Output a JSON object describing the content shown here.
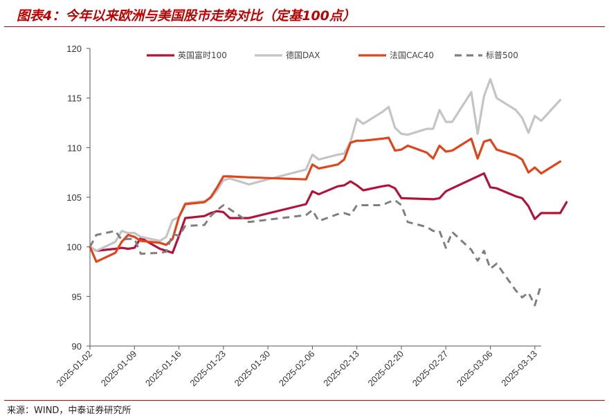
{
  "title": "图表4：今年以来欧洲与美国股市走势对比（定基100点）",
  "source": "来源：WIND，中泰证券研究所",
  "chart_data": {
    "type": "line",
    "ylim": [
      90,
      120
    ],
    "yticks": [
      "90",
      "95",
      "100",
      "105",
      "110",
      "115",
      "120"
    ],
    "xticks": [
      "2025-01-02",
      "2025-01-09",
      "2025-01-16",
      "2025-01-23",
      "2025-01-30",
      "2025-02-06",
      "2025-02-13",
      "2025-02-20",
      "2025-02-27",
      "2025-03-06",
      "2025-03-13"
    ],
    "x_start": "2025-01-02",
    "x_end": "2025-03-14",
    "legend_position": "top",
    "series": [
      {
        "name": "英国富时100",
        "color": "#b5123a",
        "dash": "solid",
        "points": [
          [
            "2025-01-02",
            100
          ],
          [
            "2025-01-03",
            99.6
          ],
          [
            "2025-01-06",
            99.8
          ],
          [
            "2025-01-07",
            99.9
          ],
          [
            "2025-01-08",
            99.8
          ],
          [
            "2025-01-09",
            99.9
          ],
          [
            "2025-01-10",
            100.9
          ],
          [
            "2025-01-13",
            99.8
          ],
          [
            "2025-01-14",
            99.6
          ],
          [
            "2025-01-15",
            99.4
          ],
          [
            "2025-01-16",
            101.1
          ],
          [
            "2025-01-17",
            102.9
          ],
          [
            "2025-01-20",
            103.1
          ],
          [
            "2025-01-21",
            103.4
          ],
          [
            "2025-01-22",
            103.6
          ],
          [
            "2025-01-23",
            103.5
          ],
          [
            "2025-01-24",
            102.9
          ],
          [
            "2025-01-27",
            102.9
          ],
          [
            "2025-02-05",
            104.3
          ],
          [
            "2025-02-06",
            105.6
          ],
          [
            "2025-02-07",
            105.3
          ],
          [
            "2025-02-10",
            106.1
          ],
          [
            "2025-02-11",
            106.2
          ],
          [
            "2025-02-12",
            106.6
          ],
          [
            "2025-02-13",
            106.2
          ],
          [
            "2025-02-14",
            105.7
          ],
          [
            "2025-02-17",
            106.1
          ],
          [
            "2025-02-18",
            106.2
          ],
          [
            "2025-02-19",
            105.9
          ],
          [
            "2025-02-20",
            104.9
          ],
          [
            "2025-02-25",
            104.8
          ],
          [
            "2025-02-26",
            104.9
          ],
          [
            "2025-02-27",
            105.6
          ],
          [
            "2025-02-28",
            105.9
          ],
          [
            "2025-03-03",
            106.8
          ],
          [
            "2025-03-04",
            107.1
          ],
          [
            "2025-03-05",
            107.4
          ],
          [
            "2025-03-06",
            106.0
          ],
          [
            "2025-03-07",
            105.9
          ],
          [
            "2025-03-10",
            105.1
          ],
          [
            "2025-03-11",
            104.9
          ],
          [
            "2025-03-12",
            104.1
          ],
          [
            "2025-03-13",
            102.8
          ],
          [
            "2025-03-14",
            103.4
          ],
          [
            "2025-03-17",
            103.4
          ],
          [
            "2025-03-18",
            104.5
          ]
        ]
      },
      {
        "name": "德国DAX",
        "color": "#c4c4c4",
        "dash": "solid",
        "points": [
          [
            "2025-01-02",
            100
          ],
          [
            "2025-01-03",
            99.6
          ],
          [
            "2025-01-06",
            100.5
          ],
          [
            "2025-01-07",
            101.6
          ],
          [
            "2025-01-08",
            101.4
          ],
          [
            "2025-01-09",
            101.4
          ],
          [
            "2025-01-10",
            101.0
          ],
          [
            "2025-01-13",
            100.6
          ],
          [
            "2025-01-14",
            101.0
          ],
          [
            "2025-01-15",
            102.7
          ],
          [
            "2025-01-16",
            103.0
          ],
          [
            "2025-01-17",
            104.4
          ],
          [
            "2025-01-20",
            104.6
          ],
          [
            "2025-01-21",
            104.9
          ],
          [
            "2025-01-22",
            105.7
          ],
          [
            "2025-01-23",
            106.7
          ],
          [
            "2025-01-24",
            106.9
          ],
          [
            "2025-01-27",
            106.3
          ],
          [
            "2025-02-05",
            107.8
          ],
          [
            "2025-02-06",
            109.3
          ],
          [
            "2025-02-07",
            108.8
          ],
          [
            "2025-02-10",
            109.3
          ],
          [
            "2025-02-11",
            109.4
          ],
          [
            "2025-02-12",
            110.6
          ],
          [
            "2025-02-13",
            112.9
          ],
          [
            "2025-02-14",
            112.4
          ],
          [
            "2025-02-17",
            113.6
          ],
          [
            "2025-02-18",
            114.1
          ],
          [
            "2025-02-19",
            112.0
          ],
          [
            "2025-02-20",
            111.4
          ],
          [
            "2025-02-21",
            111.3
          ],
          [
            "2025-02-24",
            111.9
          ],
          [
            "2025-02-25",
            111.9
          ],
          [
            "2025-02-26",
            113.8
          ],
          [
            "2025-02-27",
            112.6
          ],
          [
            "2025-02-28",
            112.6
          ],
          [
            "2025-03-03",
            115.6
          ],
          [
            "2025-03-04",
            111.4
          ],
          [
            "2025-03-05",
            115.2
          ],
          [
            "2025-03-06",
            116.9
          ],
          [
            "2025-03-07",
            115.0
          ],
          [
            "2025-03-10",
            113.8
          ],
          [
            "2025-03-11",
            113.0
          ],
          [
            "2025-03-12",
            111.5
          ],
          [
            "2025-03-13",
            113.2
          ],
          [
            "2025-03-14",
            112.7
          ],
          [
            "2025-03-17",
            114.8
          ]
        ]
      },
      {
        "name": "法国CAC40",
        "color": "#e0441b",
        "dash": "solid",
        "points": [
          [
            "2025-01-02",
            100
          ],
          [
            "2025-01-03",
            98.5
          ],
          [
            "2025-01-06",
            99.4
          ],
          [
            "2025-01-07",
            100.5
          ],
          [
            "2025-01-08",
            101.2
          ],
          [
            "2025-01-09",
            101.0
          ],
          [
            "2025-01-10",
            100.6
          ],
          [
            "2025-01-13",
            100.4
          ],
          [
            "2025-01-14",
            100.2
          ],
          [
            "2025-01-15",
            100.8
          ],
          [
            "2025-01-16",
            103.0
          ],
          [
            "2025-01-17",
            104.3
          ],
          [
            "2025-01-20",
            104.5
          ],
          [
            "2025-01-21",
            105.0
          ],
          [
            "2025-01-22",
            106.0
          ],
          [
            "2025-01-23",
            107.1
          ],
          [
            "2025-01-24",
            107.1
          ],
          [
            "2025-01-27",
            107.0
          ],
          [
            "2025-02-05",
            106.8
          ],
          [
            "2025-02-06",
            108.3
          ],
          [
            "2025-02-07",
            107.9
          ],
          [
            "2025-02-10",
            108.3
          ],
          [
            "2025-02-11",
            108.8
          ],
          [
            "2025-02-12",
            110.5
          ],
          [
            "2025-02-13",
            110.7
          ],
          [
            "2025-02-14",
            110.7
          ],
          [
            "2025-02-17",
            110.9
          ],
          [
            "2025-02-18",
            111.0
          ],
          [
            "2025-02-19",
            109.7
          ],
          [
            "2025-02-20",
            109.8
          ],
          [
            "2025-02-21",
            110.2
          ],
          [
            "2025-02-24",
            109.5
          ],
          [
            "2025-02-25",
            108.9
          ],
          [
            "2025-02-26",
            110.2
          ],
          [
            "2025-02-27",
            109.6
          ],
          [
            "2025-02-28",
            109.7
          ],
          [
            "2025-03-03",
            110.9
          ],
          [
            "2025-03-04",
            108.9
          ],
          [
            "2025-03-05",
            110.6
          ],
          [
            "2025-03-06",
            110.8
          ],
          [
            "2025-03-07",
            109.8
          ],
          [
            "2025-03-10",
            109.2
          ],
          [
            "2025-03-11",
            108.8
          ],
          [
            "2025-03-12",
            107.5
          ],
          [
            "2025-03-13",
            108.0
          ],
          [
            "2025-03-14",
            107.4
          ],
          [
            "2025-03-17",
            108.6
          ]
        ]
      },
      {
        "name": "标普500",
        "color": "#7f7f7f",
        "dash": "dashed",
        "points": [
          [
            "2025-01-02",
            100
          ],
          [
            "2025-01-03",
            101.2
          ],
          [
            "2025-01-06",
            101.6
          ],
          [
            "2025-01-07",
            100.7
          ],
          [
            "2025-01-08",
            100.8
          ],
          [
            "2025-01-09",
            100.8
          ],
          [
            "2025-01-10",
            99.3
          ],
          [
            "2025-01-13",
            99.4
          ],
          [
            "2025-01-14",
            99.5
          ],
          [
            "2025-01-15",
            101.3
          ],
          [
            "2025-01-16",
            101.1
          ],
          [
            "2025-01-17",
            102.1
          ],
          [
            "2025-01-20",
            102.2
          ],
          [
            "2025-01-21",
            103.1
          ],
          [
            "2025-01-22",
            103.7
          ],
          [
            "2025-01-23",
            104.2
          ],
          [
            "2025-01-24",
            103.8
          ],
          [
            "2025-01-27",
            102.5
          ],
          [
            "2025-02-05",
            103.2
          ],
          [
            "2025-02-06",
            103.7
          ],
          [
            "2025-02-07",
            102.6
          ],
          [
            "2025-02-10",
            103.3
          ],
          [
            "2025-02-11",
            103.4
          ],
          [
            "2025-02-12",
            103.2
          ],
          [
            "2025-02-13",
            104.2
          ],
          [
            "2025-02-14",
            104.2
          ],
          [
            "2025-02-17",
            104.2
          ],
          [
            "2025-02-18",
            104.5
          ],
          [
            "2025-02-19",
            104.7
          ],
          [
            "2025-02-20",
            104.2
          ],
          [
            "2025-02-21",
            102.5
          ],
          [
            "2025-02-24",
            102.0
          ],
          [
            "2025-02-25",
            101.6
          ],
          [
            "2025-02-26",
            101.6
          ],
          [
            "2025-02-27",
            99.9
          ],
          [
            "2025-02-28",
            101.5
          ],
          [
            "2025-03-03",
            99.7
          ],
          [
            "2025-03-04",
            98.6
          ],
          [
            "2025-03-05",
            99.6
          ],
          [
            "2025-03-06",
            97.8
          ],
          [
            "2025-03-07",
            98.3
          ],
          [
            "2025-03-10",
            95.6
          ],
          [
            "2025-03-11",
            94.9
          ],
          [
            "2025-03-12",
            95.4
          ],
          [
            "2025-03-13",
            94.1
          ],
          [
            "2025-03-14",
            96.2
          ]
        ]
      }
    ]
  }
}
